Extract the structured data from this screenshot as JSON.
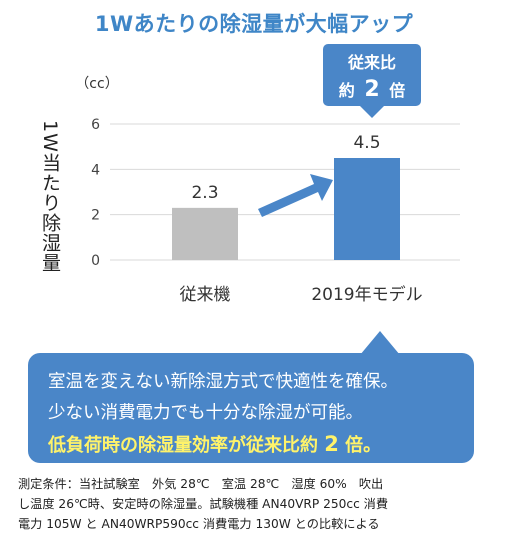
{
  "title": "1Wあたりの除湿量が大幅アップ",
  "unit_label": "（cc）",
  "y_axis_label": "1W当たり除湿量",
  "badge": {
    "line1": "従来比",
    "line2_prefix": "約",
    "line2_num": "2",
    "line2_suffix": "倍"
  },
  "chart_data": {
    "type": "bar",
    "title": "1Wあたりの除湿量が大幅アップ",
    "xlabel": "",
    "ylabel": "1W当たり除湿量",
    "categories": [
      "従来機",
      "2019年モデル"
    ],
    "values": [
      2.3,
      4.5
    ],
    "value_labels": [
      "2.3",
      "4.5"
    ],
    "ylim": [
      0,
      6
    ],
    "yticks": [
      "0",
      "2",
      "4",
      "6"
    ],
    "grid": true,
    "colors": {
      "bar_old": "#bfbfbf",
      "bar_new": "#4a86c8",
      "arrow": "#4a86c8",
      "grid": "#d9d9d9"
    }
  },
  "callout": {
    "line1": "室温を変えない新除湿方式で快適性を確保。",
    "line2": "少ない消費電力でも十分な除湿が可能。",
    "line3_prefix": "低負荷時の除湿量効率が従来比約 ",
    "line3_num": "2",
    "line3_suffix": " 倍。"
  },
  "footnote": {
    "line1": "測定条件：当社試験室　外気 28℃　室温 28℃　湿度 60%　吹出",
    "line2": "し温度 26℃時、安定時の除湿量。試験機種 AN40VRP 250cc 消費",
    "line3": "電力 105W と AN40WRP590cc 消費電力 130W との比較による"
  },
  "colors": {
    "title": "#3f86c7",
    "accent": "#4a86c8",
    "highlight": "#fff36a"
  }
}
